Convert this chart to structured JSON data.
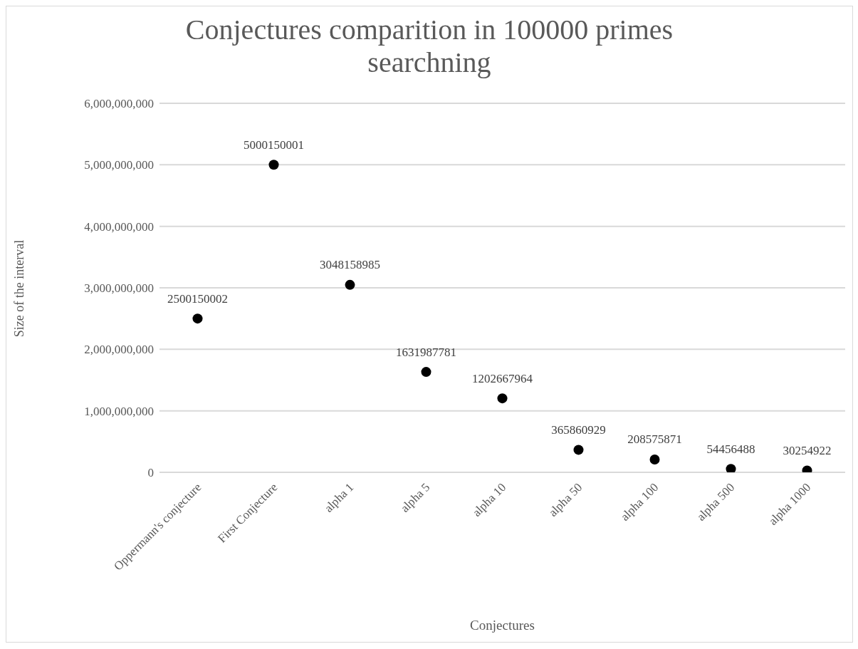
{
  "chart_data": {
    "type": "scatter",
    "title": "Conjectures comparition in 100000 primes searchning",
    "xlabel": "Conjectures",
    "ylabel": "Size of the interval",
    "categories": [
      "Oppermann's conjecture",
      "First Conjecture",
      "alpha 1",
      "alpha 5",
      "alpha 10",
      "alpha 50",
      "alpha 100",
      "alpha 500",
      "alpha 1000"
    ],
    "values": [
      2500150002,
      5000150001,
      3048158985,
      1631987781,
      1202667964,
      365860929,
      208575871,
      54456488,
      30254922
    ],
    "color": "#000000",
    "ylim": [
      0,
      6000000000
    ],
    "yticks": [
      0,
      {
        "value": 1000000000,
        "label": "1,000,000,000"
      },
      {
        "value": 2000000000,
        "label": "2,000,000,000"
      },
      {
        "value": 3000000000,
        "label": "3,000,000,000"
      },
      {
        "value": 4000000000,
        "label": "4,000,000,000"
      },
      {
        "value": 5000000000,
        "label": "5,000,000,000"
      },
      {
        "value": 6000000000,
        "label": "6,000,000,000"
      }
    ],
    "grid": "y",
    "marker": "circle",
    "data_labels": true
  }
}
